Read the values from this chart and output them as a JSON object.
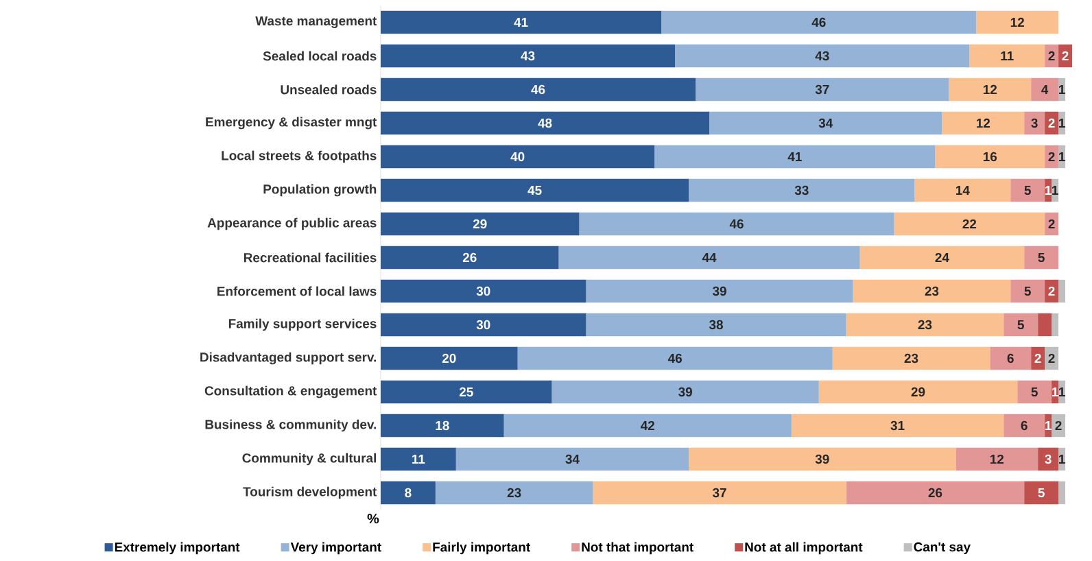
{
  "chart_data": {
    "type": "bar",
    "stacked": true,
    "orientation": "horizontal",
    "xlabel": "%",
    "tick_labels": "y",
    "legend": "bottom",
    "categories": [
      "Waste management",
      "Sealed local roads",
      "Unsealed roads",
      "Emergency & disaster mngt",
      "Local streets & footpaths",
      "Population growth",
      "Appearance of public areas",
      "Recreational facilities",
      "Enforcement of local laws",
      "Family support services",
      "Disadvantaged support serv.",
      "Consultation & engagement",
      "Business & community dev.",
      "Community & cultural",
      "Tourism development"
    ],
    "series": [
      {
        "name": "Extremely important",
        "color": "#2f5b94",
        "values": [
          41,
          43,
          46,
          48,
          40,
          45,
          29,
          26,
          30,
          30,
          20,
          25,
          18,
          11,
          8
        ],
        "value_labels": [
          "41",
          "43",
          "46",
          "48",
          "40",
          "45",
          "29",
          "26",
          "30",
          "30",
          "20",
          "25",
          "18",
          "11",
          "8"
        ]
      },
      {
        "name": "Very important",
        "color": "#95b3d7",
        "values": [
          46,
          43,
          37,
          34,
          41,
          33,
          46,
          44,
          39,
          38,
          46,
          39,
          42,
          34,
          23
        ],
        "value_labels": [
          "46",
          "43",
          "37",
          "34",
          "41",
          "33",
          "46",
          "44",
          "39",
          "38",
          "46",
          "39",
          "42",
          "34",
          "23"
        ]
      },
      {
        "name": "Fairly important",
        "color": "#fac090",
        "values": [
          12,
          11,
          12,
          12,
          16,
          14,
          22,
          24,
          23,
          23,
          23,
          29,
          31,
          39,
          37
        ],
        "value_labels": [
          "12",
          "11",
          "12",
          "12",
          "16",
          "14",
          "22",
          "24",
          "23",
          "23",
          "23",
          "29",
          "31",
          "39",
          "37"
        ]
      },
      {
        "name": "Not that important",
        "color": "#e39696",
        "values": [
          0,
          2,
          4,
          3,
          2,
          5,
          2,
          5,
          5,
          5,
          6,
          5,
          6,
          12,
          26
        ],
        "value_labels": [
          null,
          "2",
          "4",
          "3",
          "2",
          "5",
          "2",
          "5",
          "5",
          "5",
          "6",
          "5",
          "6",
          "12",
          "26"
        ]
      },
      {
        "name": "Not at all important",
        "color": "#c0504d",
        "values": [
          0,
          2,
          0,
          2,
          0,
          1,
          0,
          0,
          2,
          2,
          2,
          1,
          1,
          3,
          5
        ],
        "value_labels": [
          null,
          "2",
          null,
          "2",
          null,
          "1",
          null,
          null,
          "2",
          null,
          "2",
          "1",
          "1",
          "3",
          "5"
        ]
      },
      {
        "name": "Can't say",
        "color": "#bfbfbf",
        "values": [
          0,
          0,
          1,
          1,
          1,
          1,
          0,
          0,
          1,
          1,
          2,
          1,
          2,
          1,
          1
        ],
        "value_labels": [
          null,
          null,
          "1",
          "1",
          "1",
          "1",
          null,
          null,
          null,
          null,
          "2",
          "1",
          "2",
          "1",
          null
        ]
      }
    ]
  }
}
